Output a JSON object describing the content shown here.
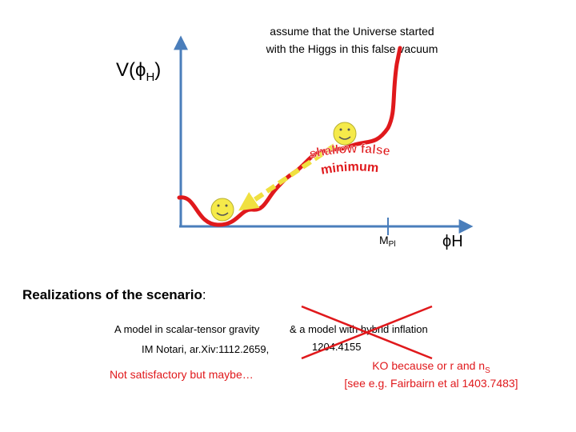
{
  "axes": {
    "y_label": {
      "main": "V(ϕ",
      "sub": "H",
      "close": ")"
    },
    "tick_label": {
      "main": "M",
      "sub": "Pl"
    },
    "x_label": "ϕH"
  },
  "annotation": {
    "lines": [
      "assume that the Universe started",
      "with the Higgs in this false vacuum"
    ]
  },
  "curved_label": {
    "lines": [
      "shallow false",
      "minimum"
    ]
  },
  "section": {
    "title": "Realizations of the scenario",
    "colon": ":"
  },
  "models": {
    "left": {
      "line1": "A model in scalar-tensor gravity",
      "line2": "IM Notari, ar.Xiv:1112.2659,",
      "note": "Not satisfactory but maybe…"
    },
    "right": {
      "line1": "& a model with hybrid inflation",
      "line2": "1204.4155",
      "ko": {
        "main": "KO because or r and n",
        "sub": "S"
      },
      "ref": "[see e.g. Fairbairn et al  1403.7483]"
    }
  }
}
